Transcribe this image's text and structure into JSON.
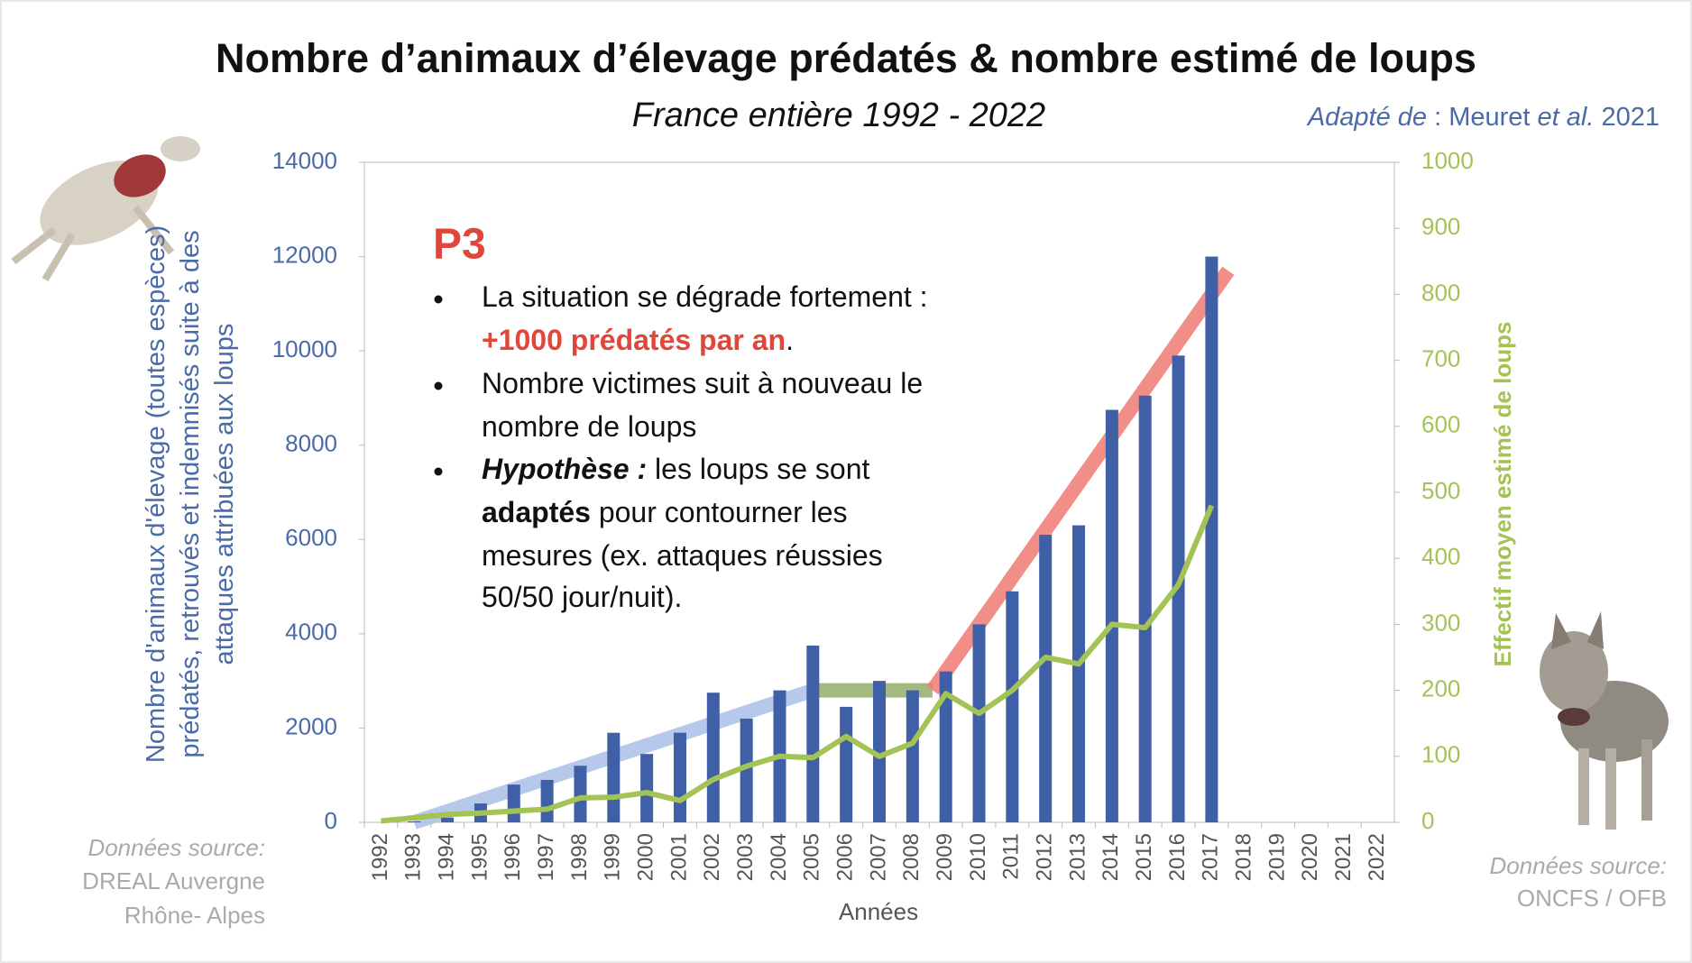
{
  "chart_data": {
    "type": "bar",
    "title": "Nombre d’animaux d’élevage prédatés & nombre estimé de loups",
    "subtitle": "France entière 1992 - 2022",
    "attribution": [
      "Adapté de",
      " : Meuret ",
      "et al.",
      " 2021"
    ],
    "x_label": "Années",
    "y_label": [
      "Nombre d'animaux d'élevage (toutes espèces)",
      "prédatés, retrouvés et indemnisés suite à des",
      "attaques attribuées aux loups"
    ],
    "y2_label": "Effectif moyen estimé de loups",
    "source_left": [
      "Données source:",
      "DREAL Auvergne",
      "Rhône- Alpes"
    ],
    "source_right": [
      "Données source:",
      "ONCFS / OFB"
    ],
    "categories": [
      "1992",
      "1993",
      "1994",
      "1995",
      "1996",
      "1997",
      "1998",
      "1999",
      "2000",
      "2001",
      "2002",
      "2003",
      "2004",
      "2005",
      "2006",
      "2007",
      "2008",
      "2009",
      "2010",
      "2011",
      "2012",
      "2013",
      "2014",
      "2015",
      "2016",
      "2017",
      "2018",
      "2019",
      "2020",
      "2021",
      "2022"
    ],
    "series": [
      {
        "type": "bar",
        "color": "#3f5fa6",
        "values": [
          null,
          20,
          100,
          400,
          800,
          900,
          1200,
          1900,
          1450,
          1900,
          2750,
          2200,
          2800,
          3750,
          2450,
          3000,
          2800,
          3200,
          4200,
          4900,
          6100,
          6300,
          8750,
          9050,
          9900,
          12000,
          null,
          null,
          null,
          null,
          null
        ]
      },
      {
        "type": "line",
        "axis": "y2",
        "color": "#a4c355",
        "values": [
          2,
          7,
          12,
          14,
          17,
          20,
          37,
          38,
          45,
          33,
          65,
          85,
          100,
          98,
          130,
          100,
          120,
          195,
          165,
          200,
          250,
          240,
          300,
          295,
          360,
          480,
          null,
          null,
          null,
          null,
          null
        ]
      }
    ],
    "trend_lines": [
      {
        "color": "#aac0e6",
        "x": [
          1993,
          2005
        ],
        "y": [
          0,
          2800
        ]
      },
      {
        "color": "#93ad68",
        "x": [
          2005,
          2008.6
        ],
        "y": [
          2800,
          2800
        ]
      },
      {
        "color": "#ef7a72",
        "x": [
          2008.6,
          2017.5
        ],
        "y": [
          2800,
          11700
        ]
      }
    ],
    "annotation": {
      "label": "P3",
      "lines": [
        [
          "La situation se dégrade fortement :"
        ],
        [
          "+1000 prédatés par an",
          "."
        ],
        [
          "Nombre victimes suit à nouveau le"
        ],
        [
          "nombre de loups"
        ],
        [
          "Hypothèse :",
          " les loups se sont"
        ],
        [
          "adaptés",
          " pour contourner les"
        ],
        [
          "mesures (ex. attaques réussies"
        ],
        [
          "50/50 jour/nuit)."
        ]
      ]
    },
    "ylim": [
      0,
      14000
    ],
    "yticks": [
      0,
      2000,
      4000,
      6000,
      8000,
      10000,
      12000,
      14000
    ],
    "y2lim": [
      0,
      1000
    ],
    "y2ticks": [
      0,
      100,
      200,
      300,
      400,
      500,
      600,
      700,
      800,
      900,
      1000
    ]
  }
}
